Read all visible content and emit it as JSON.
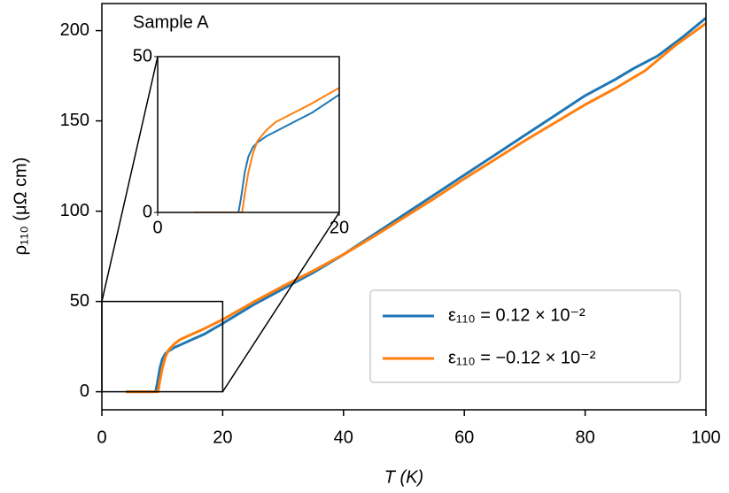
{
  "chart_data": {
    "type": "line",
    "annotation": "Sample A",
    "xlabel": "T (K)",
    "ylabel": "ρ₁₁₀ (μΩ cm)",
    "xlim": [
      0,
      100
    ],
    "ylim": [
      -10,
      215
    ],
    "xticks": [
      0,
      20,
      40,
      60,
      80,
      100
    ],
    "yticks": [
      0,
      50,
      100,
      150,
      200
    ],
    "legend": "lower right",
    "series": [
      {
        "name": "ε₁₁₀ = 0.12 × 10⁻²",
        "color": "#1f77b4",
        "x": [
          4,
          8,
          8.9,
          9.2,
          9.6,
          10,
          10.5,
          11,
          12,
          13,
          15,
          17,
          20,
          25,
          30,
          35,
          40,
          45,
          50,
          55,
          60,
          65,
          70,
          75,
          80,
          85,
          88,
          92,
          96,
          100
        ],
        "values": [
          0,
          0,
          0,
          5,
          13,
          18,
          21,
          22.5,
          24.5,
          26,
          29,
          32,
          37.8,
          48,
          57,
          66,
          76,
          87,
          98,
          109,
          120,
          131,
          142,
          153,
          164,
          173,
          179,
          186,
          196,
          207
        ]
      },
      {
        "name": "ε₁₁₀ = −0.12 × 10⁻²",
        "color": "#ff7f0e",
        "x": [
          4,
          8,
          9.3,
          9.6,
          10,
          10.5,
          11,
          12,
          13,
          15,
          17,
          20,
          25,
          30,
          35,
          40,
          45,
          50,
          55,
          60,
          65,
          70,
          75,
          80,
          85,
          88,
          90,
          95,
          100
        ],
        "values": [
          0,
          0,
          0,
          6,
          13,
          19,
          23,
          26.5,
          29,
          32,
          35,
          40,
          49.5,
          58.5,
          67,
          76,
          86,
          96.5,
          107,
          118,
          128.5,
          139,
          149,
          159,
          168,
          174,
          178,
          192,
          204
        ]
      }
    ],
    "inset": {
      "xlim": [
        0,
        20
      ],
      "ylim": [
        0,
        50
      ],
      "xticks": [
        0,
        20
      ],
      "yticks": [
        0,
        50
      ]
    }
  }
}
